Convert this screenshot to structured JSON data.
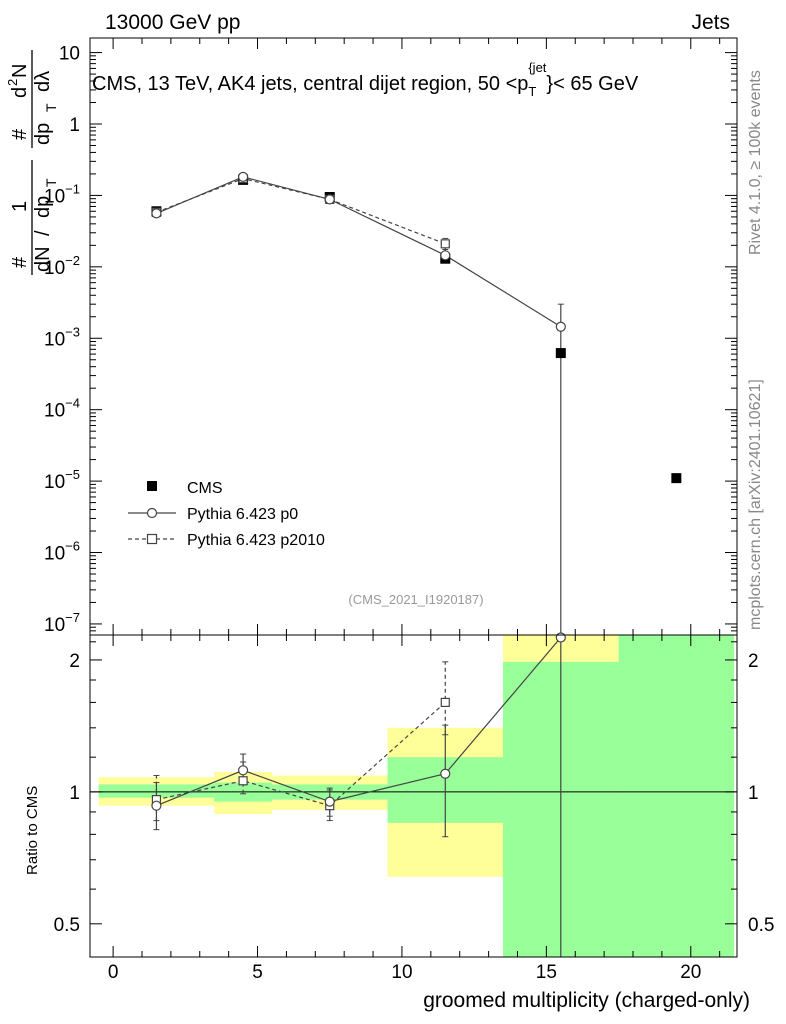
{
  "header": {
    "left": "13000 GeV pp",
    "right": "Jets"
  },
  "side_labels": {
    "rivet": "Rivet 4.1.0, ≥ 100k events",
    "mcplots": "mcplots.cern.ch [arXiv:2401.10621]"
  },
  "chart_data": {
    "type": "scatter",
    "title": "CMS, 13 TeV, AK4 jets, central dijet region, 50 <p_T^{jet}< 65 GeV",
    "title_main": "CMS, 13 TeV, AK4 jets, central dijet region, 50 <p",
    "title_sup": "{jet",
    "title_sub": "T",
    "title_end": "}< 65 GeV",
    "watermark": "(CMS_2021_I1920187)",
    "xlabel": "groomed multiplicity (charged-only)",
    "ylabel_main_parts": [
      "#",
      "1",
      "dN",
      "/",
      "dp",
      "T",
      "#",
      "d",
      "2",
      "N",
      "dp",
      "T",
      "dλ"
    ],
    "ylabel_ratio": "Ratio to CMS",
    "xlim": [
      -0.8,
      21.6
    ],
    "ylim_main": [
      7e-08,
      16
    ],
    "ylim_ratio": [
      0.42,
      2.28
    ],
    "x_ticks": [
      0,
      5,
      10,
      15,
      20
    ],
    "x_tick_labels": [
      "0",
      "5",
      "10",
      "15",
      "20"
    ],
    "y_main_ticks": [
      {
        "base": "10",
        "exp": "−7",
        "value": 1e-07
      },
      {
        "base": "10",
        "exp": "−6",
        "value": 1e-06
      },
      {
        "base": "10",
        "exp": "−5",
        "value": 1e-05
      },
      {
        "base": "10",
        "exp": "−4",
        "value": 0.0001
      },
      {
        "base": "10",
        "exp": "−3",
        "value": 0.001
      },
      {
        "base": "10",
        "exp": "−2",
        "value": 0.01
      },
      {
        "base": "10",
        "exp": "−1",
        "value": 0.1
      },
      {
        "base": "1",
        "exp": "",
        "value": 1
      },
      {
        "base": "10",
        "exp": "",
        "value": 10
      }
    ],
    "y_ratio_ticks": [
      {
        "label": "0.5",
        "value": 0.5
      },
      {
        "label": "1",
        "value": 1
      },
      {
        "label": "2",
        "value": 2
      }
    ],
    "legend": {
      "placement": "lower-left",
      "entries": [
        "CMS",
        "Pythia 6.423 p0",
        "Pythia 6.423 p2010"
      ]
    },
    "series": [
      {
        "name": "CMS",
        "style": "filled-square",
        "x": [
          1.5,
          4.5,
          7.5,
          11.5,
          15.5,
          19.5
        ],
        "y": [
          0.06,
          0.165,
          0.095,
          0.013,
          0.00062,
          1.1e-05
        ]
      },
      {
        "name": "Pythia 6.423 p0",
        "style": "open-circle-solid",
        "x": [
          1.5,
          4.5,
          7.5,
          11.5,
          15.5
        ],
        "y": [
          0.056,
          0.182,
          0.088,
          0.0145,
          0.00145
        ],
        "err_low": [
          0.052,
          0.174,
          0.083,
          0.0115,
          0.0
        ],
        "err_high": [
          0.06,
          0.19,
          0.093,
          0.0175,
          0.003
        ],
        "ratio": [
          0.93,
          1.12,
          0.95,
          1.1,
          2.25
        ],
        "ratio_err_low": [
          0.82,
          1.04,
          0.88,
          0.79,
          0.0
        ],
        "ratio_err_high": [
          1.05,
          1.22,
          1.02,
          1.42,
          2.28
        ]
      },
      {
        "name": "Pythia 6.423 p2010",
        "style": "open-square-dashed",
        "x": [
          1.5,
          4.5,
          7.5,
          11.5
        ],
        "y": [
          0.058,
          0.172,
          0.088,
          0.021
        ],
        "err_low": [
          0.054,
          0.165,
          0.083,
          0.017
        ],
        "err_high": [
          0.062,
          0.18,
          0.093,
          0.025
        ],
        "ratio": [
          0.96,
          1.06,
          0.93,
          1.6
        ],
        "ratio_err_low": [
          0.86,
          0.99,
          0.86,
          1.35
        ],
        "ratio_err_high": [
          1.09,
          1.17,
          1.01,
          1.98
        ]
      }
    ],
    "ratio_bands": [
      {
        "x0": -0.5,
        "x1": 3.5,
        "green": [
          0.97,
          1.04
        ],
        "yellow": [
          0.93,
          1.08
        ]
      },
      {
        "x0": 3.5,
        "x1": 5.5,
        "green": [
          0.95,
          1.05
        ],
        "yellow": [
          0.89,
          1.11
        ]
      },
      {
        "x0": 5.5,
        "x1": 9.5,
        "green": [
          0.96,
          1.04
        ],
        "yellow": [
          0.91,
          1.09
        ]
      },
      {
        "x0": 9.5,
        "x1": 13.5,
        "green": [
          0.85,
          1.2
        ],
        "yellow": [
          0.64,
          1.4
        ]
      },
      {
        "x0": 13.5,
        "x1": 17.5,
        "green": [
          0.42,
          1.98
        ],
        "yellow": [
          0.42,
          2.28
        ]
      },
      {
        "x0": 17.5,
        "x1": 21.5,
        "green": [
          0.42,
          2.28
        ],
        "yellow": [
          0.42,
          2.28
        ]
      }
    ],
    "colors": {
      "green": "#99ff99",
      "yellow": "#ffff99",
      "mc": "#444444",
      "data": "#000000"
    }
  }
}
